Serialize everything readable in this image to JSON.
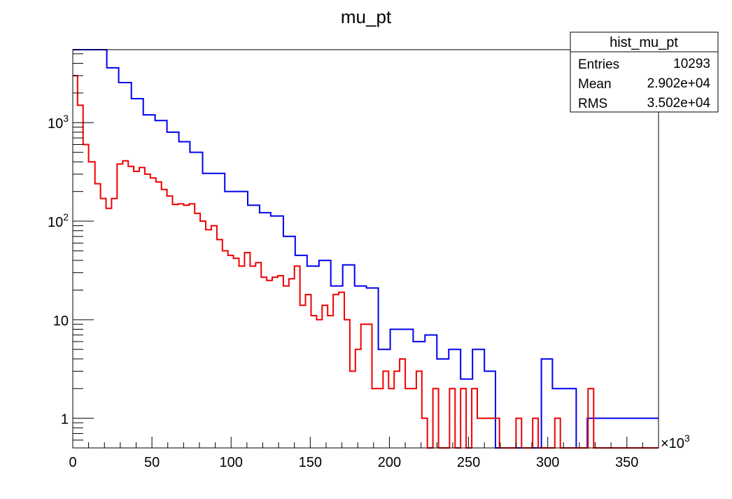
{
  "chart_data": {
    "type": "histogram",
    "title": "mu_pt",
    "x_axis": {
      "range": [
        0,
        370
      ],
      "ticks": [
        0,
        50,
        100,
        150,
        200,
        250,
        300,
        350
      ],
      "tick_labels": [
        "0",
        "50",
        "100",
        "150",
        "200",
        "250",
        "300",
        "350"
      ],
      "exponent_label": "×10",
      "exponent_sup": "3"
    },
    "y_axis": {
      "scale": "log",
      "range": [
        0.5,
        5500
      ],
      "ticks": [
        1,
        10,
        100,
        1000
      ],
      "tick_labels": [
        {
          "base": "1",
          "sup": ""
        },
        {
          "base": "10",
          "sup": ""
        },
        {
          "base": "10",
          "sup": "2"
        },
        {
          "base": "10",
          "sup": "3"
        }
      ]
    },
    "stats_box": {
      "title": "hist_mu_pt",
      "rows": [
        {
          "label": "Entries",
          "value": "10293"
        },
        {
          "label": "Mean",
          "value": "2.902e+04"
        },
        {
          "label": "RMS",
          "value": "3.502e+04"
        }
      ]
    },
    "series": [
      {
        "color": "#0000ee",
        "bins": [
          [
            0,
            21.5,
            5500
          ],
          [
            21.5,
            29,
            3600
          ],
          [
            29,
            37,
            2550
          ],
          [
            37,
            44.5,
            1750
          ],
          [
            44.5,
            52,
            1200
          ],
          [
            52,
            59.5,
            1050
          ],
          [
            59.5,
            67,
            800
          ],
          [
            67,
            74,
            640
          ],
          [
            74,
            82,
            500
          ],
          [
            82,
            96,
            305
          ],
          [
            96,
            110.5,
            200
          ],
          [
            110.5,
            118,
            145
          ],
          [
            118,
            125,
            122
          ],
          [
            125,
            133,
            113
          ],
          [
            133,
            140.5,
            70
          ],
          [
            140.5,
            148,
            45
          ],
          [
            148,
            155.5,
            35
          ],
          [
            155.5,
            163,
            40
          ],
          [
            163,
            170.5,
            22
          ],
          [
            170.5,
            178,
            36
          ],
          [
            178,
            185.5,
            22
          ],
          [
            185.5,
            193,
            21
          ],
          [
            193,
            200.5,
            5
          ],
          [
            200.5,
            215,
            8
          ],
          [
            215,
            222.5,
            6
          ],
          [
            222.5,
            230,
            7
          ],
          [
            230,
            237.5,
            4
          ],
          [
            237.5,
            245,
            5
          ],
          [
            245,
            252.5,
            2.5
          ],
          [
            252.5,
            260,
            5
          ],
          [
            260,
            267,
            3
          ],
          [
            267,
            296,
            0.5
          ],
          [
            296,
            303,
            4
          ],
          [
            303,
            318,
            2
          ],
          [
            318,
            325,
            0.5
          ],
          [
            325,
            370,
            1
          ]
        ]
      },
      {
        "color": "#ee0000",
        "bins": [
          [
            0,
            3,
            3000
          ],
          [
            3,
            6.5,
            1500
          ],
          [
            6.5,
            10,
            600
          ],
          [
            10,
            14,
            400
          ],
          [
            14,
            17.5,
            240
          ],
          [
            17.5,
            21,
            170
          ],
          [
            21,
            24.5,
            135
          ],
          [
            24.5,
            28,
            170
          ],
          [
            28,
            31.5,
            380
          ],
          [
            31.5,
            35,
            410
          ],
          [
            35,
            38.5,
            360
          ],
          [
            38.5,
            42,
            320
          ],
          [
            42,
            45.5,
            350
          ],
          [
            45.5,
            49,
            300
          ],
          [
            49,
            52.5,
            275
          ],
          [
            52.5,
            56,
            250
          ],
          [
            56,
            59.5,
            210
          ],
          [
            59.5,
            63,
            180
          ],
          [
            63,
            66.5,
            148
          ],
          [
            66.5,
            70,
            150
          ],
          [
            70,
            73.5,
            145
          ],
          [
            73.5,
            77,
            150
          ],
          [
            77,
            80.5,
            120
          ],
          [
            80.5,
            84,
            100
          ],
          [
            84,
            87.5,
            82
          ],
          [
            87.5,
            91,
            90
          ],
          [
            91,
            94.5,
            65
          ],
          [
            94.5,
            98,
            50
          ],
          [
            98,
            101.5,
            45
          ],
          [
            101.5,
            105,
            42
          ],
          [
            105,
            108.5,
            35
          ],
          [
            108.5,
            112,
            48
          ],
          [
            112,
            115.5,
            35
          ],
          [
            115.5,
            119,
            38
          ],
          [
            119,
            122.5,
            27
          ],
          [
            122.5,
            126,
            25
          ],
          [
            126,
            129.5,
            27
          ],
          [
            129.5,
            133,
            28
          ],
          [
            133,
            136.5,
            22
          ],
          [
            136.5,
            140,
            26
          ],
          [
            140,
            143.5,
            35
          ],
          [
            143.5,
            147,
            14
          ],
          [
            147,
            150.5,
            18
          ],
          [
            150.5,
            154,
            11
          ],
          [
            154,
            157.5,
            10
          ],
          [
            157.5,
            161,
            14
          ],
          [
            161,
            164.5,
            11
          ],
          [
            164.5,
            168,
            18
          ],
          [
            168,
            171.5,
            19
          ],
          [
            171.5,
            175,
            10
          ],
          [
            175,
            178.5,
            3
          ],
          [
            178.5,
            182,
            5
          ],
          [
            182,
            185.5,
            9
          ],
          [
            185.5,
            189,
            9
          ],
          [
            189,
            192.5,
            2
          ],
          [
            192.5,
            196,
            2
          ],
          [
            196,
            199.5,
            3
          ],
          [
            199.5,
            203,
            2
          ],
          [
            203,
            206.5,
            3
          ],
          [
            206.5,
            210,
            4
          ],
          [
            210,
            213.5,
            2
          ],
          [
            213.5,
            217,
            2
          ],
          [
            217,
            220.5,
            3
          ],
          [
            220.5,
            224,
            1
          ],
          [
            224,
            227.5,
            0.5
          ],
          [
            227.5,
            231,
            2
          ],
          [
            231,
            234.5,
            0.5
          ],
          [
            234.5,
            238,
            0.5
          ],
          [
            238,
            241.5,
            2
          ],
          [
            241.5,
            245,
            0.5
          ],
          [
            245,
            248.5,
            2
          ],
          [
            248.5,
            252,
            0.5
          ],
          [
            252,
            255.5,
            2
          ],
          [
            255.5,
            259,
            1
          ],
          [
            259,
            269.5,
            1
          ],
          [
            269.5,
            276.5,
            0.5
          ],
          [
            276.5,
            280,
            0.5
          ],
          [
            280,
            283.5,
            1
          ],
          [
            283.5,
            287,
            0.5
          ],
          [
            287,
            290.5,
            0.5
          ],
          [
            290.5,
            294,
            1
          ],
          [
            294,
            297.5,
            0.5
          ],
          [
            297.5,
            301,
            0.5
          ],
          [
            301,
            304.5,
            0.5
          ],
          [
            304.5,
            308,
            1
          ],
          [
            308,
            311.5,
            0.5
          ],
          [
            311.5,
            315,
            0.5
          ],
          [
            315,
            318.5,
            0.5
          ],
          [
            318.5,
            322,
            0.5
          ],
          [
            322,
            325.5,
            0.5
          ],
          [
            325.5,
            329,
            2
          ],
          [
            329,
            332.5,
            0.5
          ],
          [
            332.5,
            336,
            0.5
          ],
          [
            336,
            339.5,
            0.5
          ],
          [
            339.5,
            343,
            0.5
          ],
          [
            343,
            370,
            0.5
          ]
        ]
      }
    ]
  }
}
